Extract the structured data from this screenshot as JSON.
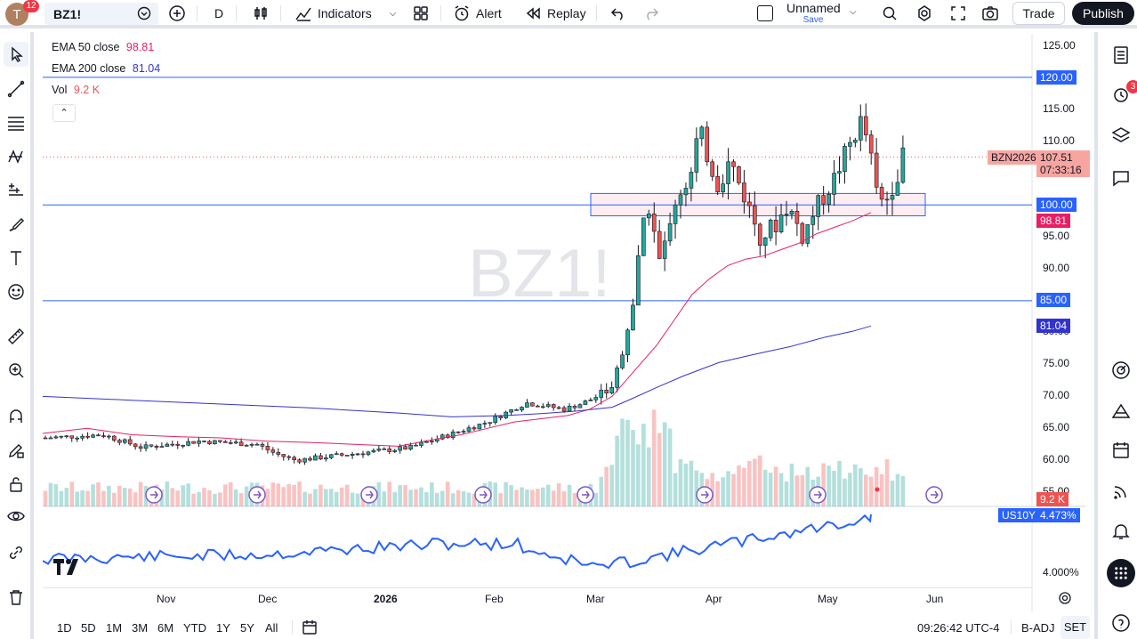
{
  "topbar": {
    "avatar_letter": "T",
    "avatar_badge": "12",
    "symbol": "BZ1!",
    "interval": "D",
    "indicators_label": "Indicators",
    "alert_label": "Alert",
    "replay_label": "Replay",
    "layout_name": "Unnamed",
    "layout_save": "Save",
    "trade_label": "Trade",
    "publish_label": "Publish"
  },
  "legend": {
    "ema50_label": "EMA 50 close",
    "ema50_value": "98.81",
    "ema200_label": "EMA 200 close",
    "ema200_value": "81.04",
    "vol_label": "Vol",
    "vol_value": "9.2 K"
  },
  "watermark": "BZ1!",
  "price_axis": [
    "125.00",
    "115.00",
    "110.00",
    "95.00",
    "90.00",
    "80.00",
    "75.00",
    "70.00",
    "65.00",
    "60.00",
    "55.00"
  ],
  "price_tags": {
    "h120": "120.00",
    "h100": "100.00",
    "h85": "85.00",
    "ema50": "98.81",
    "ema200": "81.04",
    "vol": "9.2 K",
    "contract": "BZN2026",
    "last_price": "107.51",
    "countdown": "07:33:16",
    "us10y_label": "US10Y",
    "us10y_value": "4.473%",
    "us10y_axis": "4.000%"
  },
  "time_axis": [
    "Nov",
    "Dec",
    "2026",
    "Feb",
    "Mar",
    "Apr",
    "May",
    "Jun"
  ],
  "bottombar": {
    "ranges": [
      "1D",
      "5D",
      "1M",
      "3M",
      "6M",
      "YTD",
      "1Y",
      "5Y",
      "All"
    ],
    "clock": "09:26:42 UTC-4",
    "badj": "B-ADJ",
    "set": "SET"
  },
  "right_badge": "3",
  "colors": {
    "up": "#26a69a",
    "down": "#ef5350",
    "ema50": "#e91e63",
    "ema200": "#3333cc",
    "hline": "#2962ff",
    "us10y": "#2962ff"
  },
  "chart_data": {
    "type": "candlestick",
    "symbol": "BZ1!",
    "series": [
      {
        "name": "EMA 50 close",
        "last": 98.81
      },
      {
        "name": "EMA 200 close",
        "last": 81.04
      },
      {
        "name": "Vol",
        "last": "9.2 K"
      },
      {
        "name": "US10Y",
        "last": "4.473%"
      }
    ],
    "horizontal_levels": [
      120.0,
      100.0,
      85.0
    ],
    "last_price": 107.51,
    "ylim": [
      55,
      125
    ],
    "x_labels": [
      "Nov",
      "Dec",
      "2026",
      "Feb",
      "Mar",
      "Apr",
      "May",
      "Jun"
    ]
  }
}
